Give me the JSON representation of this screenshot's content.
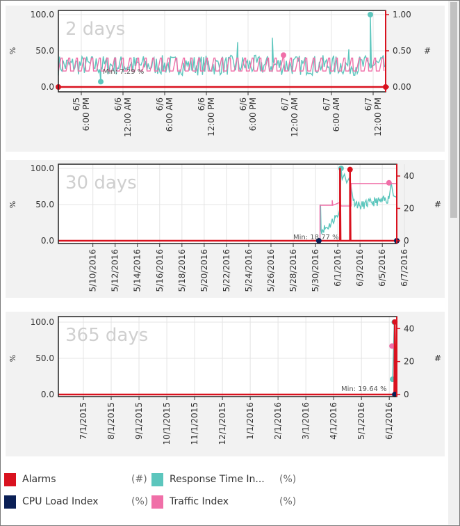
{
  "legend": [
    {
      "label": "Alarms",
      "unit": "(#)",
      "color": "#d9121f"
    },
    {
      "label": "CPU Load Index",
      "unit": "(%)",
      "color": "#0a1f55"
    },
    {
      "label": "Response Time In...",
      "unit": "(%)",
      "color": "#5cc6bd"
    },
    {
      "label": "Traffic Index",
      "unit": "(%)",
      "color": "#f06fa8"
    }
  ],
  "chart_data": [
    {
      "type": "line",
      "title": "2 days",
      "ylabel": "%",
      "y2label": "#",
      "ylim": [
        0,
        100
      ],
      "y2lim": [
        0,
        1
      ],
      "yticks": [
        "100.0",
        "50.0",
        "0.0"
      ],
      "y2ticks": [
        "1.00",
        "0.50",
        "0.00"
      ],
      "x_unit": "hours since 6/5 12:00 PM",
      "xlim": [
        2.7,
        49.8
      ],
      "xticks": [
        {
          "x": 6,
          "l1": "6/5",
          "l2": "6:00 PM"
        },
        {
          "x": 12,
          "l1": "6/6",
          "l2": "12:00 AM"
        },
        {
          "x": 18,
          "l1": "6/6",
          "l2": "6:00 AM"
        },
        {
          "x": 24,
          "l1": "6/6",
          "l2": "12:00 PM"
        },
        {
          "x": 30,
          "l1": "6/6",
          "l2": "6:00 PM"
        },
        {
          "x": 36,
          "l1": "6/7",
          "l2": "12:00 AM"
        },
        {
          "x": 42,
          "l1": "6/7",
          "l2": "6:00 AM"
        },
        {
          "x": 48,
          "l1": "6/7",
          "l2": "12:00 PM"
        }
      ],
      "min_label": "Min: 7.29 %",
      "series": [
        {
          "name": "Response Time Index",
          "color": "#5cc6bd",
          "noise": {
            "base": 30,
            "amp": 14,
            "step": 0.17,
            "seed": 7
          },
          "points": [
            [
              8.8,
              7.29
            ],
            [
              47.6,
              100
            ],
            [
              44.5,
              52
            ],
            [
              33.5,
              68
            ],
            [
              28.5,
              62
            ]
          ],
          "markers": [
            [
              8.8,
              7.29
            ],
            [
              47.6,
              100
            ]
          ]
        },
        {
          "name": "Traffic Index",
          "color": "#f06fa8",
          "square": {
            "low": 22,
            "high": 40,
            "period": 1.1
          },
          "markers": [
            [
              35.1,
              44
            ]
          ]
        },
        {
          "name": "Alarms",
          "color": "#d9121f",
          "axis": "right",
          "points": [
            [
              2.7,
              0
            ],
            [
              49.8,
              0
            ]
          ],
          "markers": [
            [
              2.7,
              0
            ],
            [
              49.8,
              0
            ]
          ]
        }
      ]
    },
    {
      "type": "line",
      "title": "30 days",
      "ylabel": "%",
      "y2label": "#",
      "ylim": [
        0,
        100
      ],
      "y2lim": [
        0,
        47.3
      ],
      "yticks": [
        "100.0",
        "50.0",
        "0.0"
      ],
      "y2ticks": [
        "40",
        "20",
        "0"
      ],
      "x_unit": "day of May 2016",
      "xlim": [
        6.9,
        37.3
      ],
      "xticks": [
        {
          "x": 10,
          "l1": "5/10/2016"
        },
        {
          "x": 12,
          "l1": "5/12/2016"
        },
        {
          "x": 14,
          "l1": "5/14/2016"
        },
        {
          "x": 16,
          "l1": "5/16/2016"
        },
        {
          "x": 18,
          "l1": "5/18/2016"
        },
        {
          "x": 20,
          "l1": "5/20/2016"
        },
        {
          "x": 22,
          "l1": "5/22/2016"
        },
        {
          "x": 24,
          "l1": "5/24/2016"
        },
        {
          "x": 26,
          "l1": "5/26/2016"
        },
        {
          "x": 28,
          "l1": "5/28/2016"
        },
        {
          "x": 30,
          "l1": "5/30/2016"
        },
        {
          "x": 32,
          "l1": "6/1/2016"
        },
        {
          "x": 34,
          "l1": "6/3/2016"
        },
        {
          "x": 36,
          "l1": "6/5/2016"
        },
        {
          "x": 38,
          "l1": "6/7/2016"
        }
      ],
      "min_label": "Min: 18.77 %",
      "series": [
        {
          "name": "Response Time Index",
          "color": "#5cc6bd",
          "points": [
            [
              30.4,
              0
            ],
            [
              30.45,
              50
            ],
            [
              30.5,
              15
            ],
            [
              31.2,
              20
            ],
            [
              31.8,
              33
            ],
            [
              32.1,
              38
            ],
            [
              32.2,
              45
            ],
            [
              32.3,
              100
            ],
            [
              32.4,
              85
            ],
            [
              32.6,
              92
            ],
            [
              32.8,
              80
            ],
            [
              33.0,
              86
            ],
            [
              33.2,
              75
            ],
            [
              33.4,
              55
            ],
            [
              34,
              48
            ],
            [
              35,
              53
            ],
            [
              36,
              55
            ],
            [
              36.6,
              58
            ],
            [
              36.8,
              80
            ],
            [
              37.0,
              62
            ],
            [
              37.3,
              60
            ]
          ],
          "jitter": 6,
          "markers": [
            [
              32.3,
              100
            ]
          ]
        },
        {
          "name": "Traffic Index",
          "color": "#f06fa8",
          "points": [
            [
              30.4,
              0
            ],
            [
              30.4,
              49
            ],
            [
              31.5,
              49
            ],
            [
              31.5,
              56
            ],
            [
              31.55,
              49
            ],
            [
              32.2,
              53
            ],
            [
              32.3,
              48
            ],
            [
              33.2,
              48
            ],
            [
              33.2,
              79
            ],
            [
              37.3,
              79
            ]
          ],
          "markers": [
            [
              36.6,
              80
            ]
          ]
        },
        {
          "name": "Alarms",
          "color": "#d9121f",
          "axis": "right",
          "points": [
            [
              6.9,
              0
            ],
            [
              32.2,
              0
            ],
            [
              32.2,
              45
            ],
            [
              32.25,
              0
            ],
            [
              33.1,
              0
            ],
            [
              33.1,
              44
            ],
            [
              33.15,
              0
            ],
            [
              37.3,
              0
            ]
          ],
          "markers": [
            [
              33.1,
              44
            ]
          ]
        },
        {
          "name": "CPU Load Index",
          "color": "#0a1f55",
          "markers": [
            [
              30.3,
              0
            ],
            [
              37.3,
              0
            ]
          ]
        }
      ]
    },
    {
      "type": "line",
      "title": "365 days",
      "ylabel": "%",
      "y2label": "#",
      "ylim": [
        0,
        100
      ],
      "y2lim": [
        0,
        47.3
      ],
      "yticks": [
        "100.0",
        "50.0",
        "0.0"
      ],
      "y2ticks": [
        "40",
        "20",
        "0"
      ],
      "x_unit": "months since 7/1/2015",
      "xlim": [
        -0.9,
        11.27
      ],
      "xticks": [
        {
          "x": 0,
          "l1": "7/1/2015"
        },
        {
          "x": 1,
          "l1": "8/1/2015"
        },
        {
          "x": 2,
          "l1": "9/1/2015"
        },
        {
          "x": 3,
          "l1": "10/1/2015"
        },
        {
          "x": 4,
          "l1": "11/1/2015"
        },
        {
          "x": 5,
          "l1": "12/1/2015"
        },
        {
          "x": 6,
          "l1": "1/1/2016"
        },
        {
          "x": 7,
          "l1": "2/1/2016"
        },
        {
          "x": 8,
          "l1": "3/1/2016"
        },
        {
          "x": 9,
          "l1": "4/1/2016"
        },
        {
          "x": 10,
          "l1": "5/1/2016"
        },
        {
          "x": 11,
          "l1": "6/1/2016"
        }
      ],
      "min_label": "Min: 19.64 %",
      "series": [
        {
          "name": "Response Time Index",
          "color": "#5cc6bd",
          "points": [
            [
              11.12,
              21
            ],
            [
              11.18,
              100
            ]
          ],
          "markers": [
            [
              11.12,
              21
            ],
            [
              11.18,
              100
            ]
          ]
        },
        {
          "name": "Traffic Index",
          "color": "#f06fa8",
          "points": [
            [
              11.1,
              67
            ],
            [
              11.2,
              67
            ]
          ],
          "markers": [
            [
              11.1,
              67
            ]
          ]
        },
        {
          "name": "Alarms",
          "color": "#d9121f",
          "axis": "right",
          "points": [
            [
              -0.9,
              0
            ],
            [
              11.18,
              0
            ],
            [
              11.2,
              44
            ],
            [
              11.24,
              0
            ]
          ],
          "markers": [
            [
              11.2,
              44
            ]
          ]
        },
        {
          "name": "CPU Load Index",
          "color": "#0a1f55",
          "markers": [
            [
              11.2,
              0
            ]
          ]
        }
      ]
    }
  ]
}
